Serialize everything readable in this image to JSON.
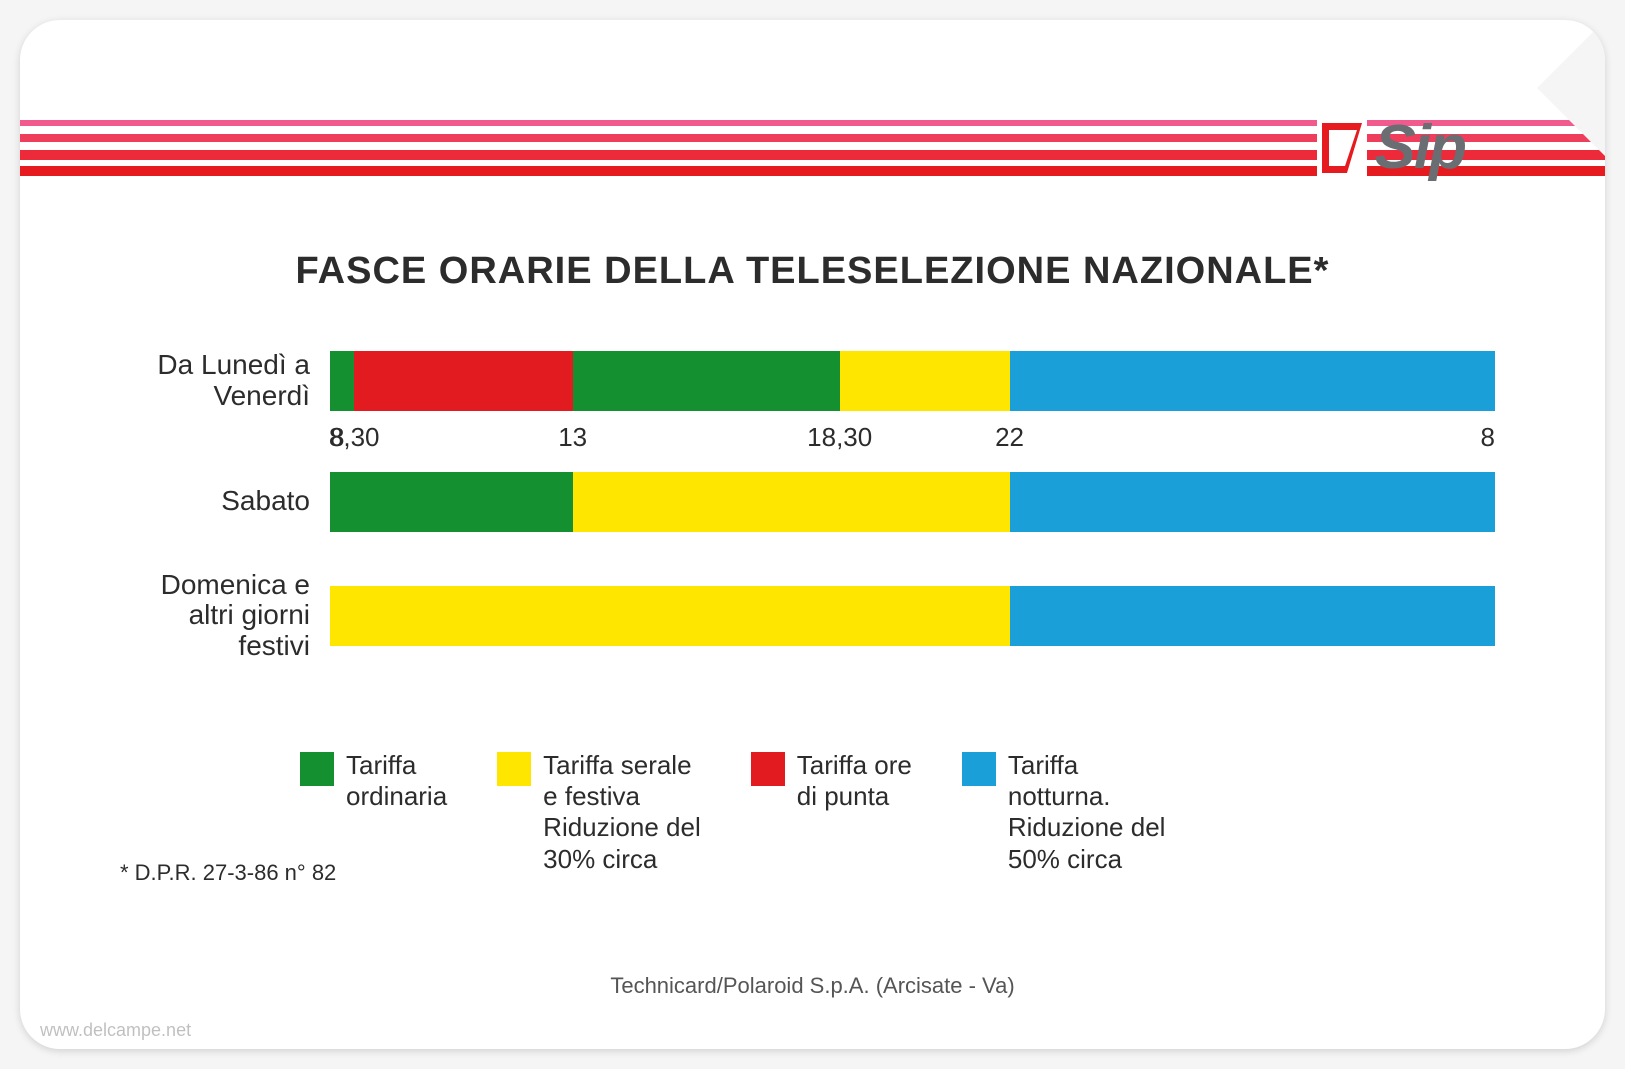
{
  "brand": "Sip",
  "title": "FASCE ORARIE DELLA TELESELEZIONE NAZIONALE*",
  "stripe_colors": [
    "#f05a8c",
    "#ee3e5b",
    "#ec2a3a",
    "#e61b1f"
  ],
  "colors": {
    "green": "#149031",
    "red": "#e11b1f",
    "yellow": "#ffe600",
    "blue": "#1a9fd8",
    "text": "#2c2c2c",
    "card_bg": "#ffffff"
  },
  "axis": {
    "ticks": [
      "8",
      "8,30",
      "13",
      "18,30",
      "22",
      "8"
    ],
    "positions_pct": [
      0,
      2.08,
      20.83,
      43.75,
      58.33,
      100
    ]
  },
  "rows": [
    {
      "label": "Da Lunedì\na Venerdì",
      "segments": [
        {
          "color": "#149031",
          "width_pct": 2.08
        },
        {
          "color": "#e11b1f",
          "width_pct": 18.75
        },
        {
          "color": "#149031",
          "width_pct": 22.92
        },
        {
          "color": "#ffe600",
          "width_pct": 14.58
        },
        {
          "color": "#1a9fd8",
          "width_pct": 41.67
        }
      ]
    },
    {
      "label": "Sabato",
      "segments": [
        {
          "color": "#149031",
          "width_pct": 20.83
        },
        {
          "color": "#ffe600",
          "width_pct": 37.5
        },
        {
          "color": "#1a9fd8",
          "width_pct": 41.67
        }
      ]
    },
    {
      "label": "Domenica\ne altri\ngiorni festivi",
      "segments": [
        {
          "color": "#ffe600",
          "width_pct": 58.33
        },
        {
          "color": "#1a9fd8",
          "width_pct": 41.67
        }
      ]
    }
  ],
  "legend": [
    {
      "color": "#149031",
      "text": "Tariffa\nordinaria"
    },
    {
      "color": "#ffe600",
      "text": "Tariffa serale\ne festiva\nRiduzione del\n30% circa"
    },
    {
      "color": "#e11b1f",
      "text": "Tariffa ore\ndi punta"
    },
    {
      "color": "#1a9fd8",
      "text": "Tariffa\nnotturna.\nRiduzione del\n50% circa"
    }
  ],
  "footnote": "* D.P.R. 27-3-86 n° 82",
  "manufacturer": "Technicard/Polaroid S.p.A. (Arcisate - Va)",
  "watermark": "www.delcampe.net"
}
